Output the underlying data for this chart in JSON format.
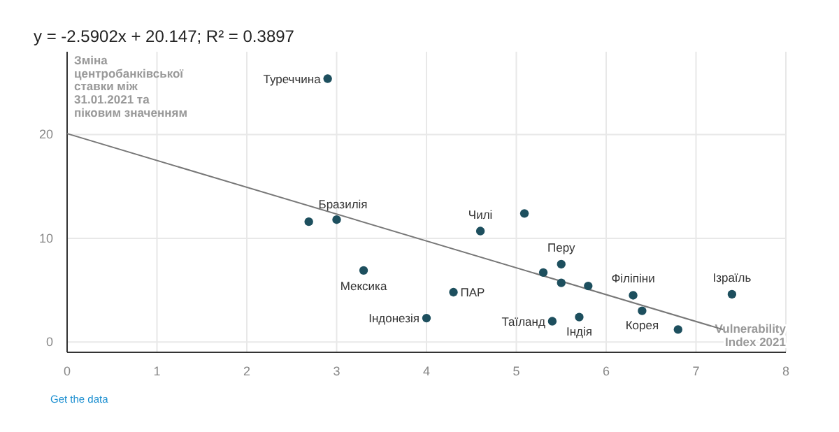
{
  "chart_data": {
    "type": "scatter",
    "title": "y = -2.5902x + 20.147; R² = 0.3897",
    "ylabel": "Зміна центробанківської ставки між 31.01.2021 та піковим значенням",
    "xlabel": "Vulnerability Index 2021",
    "xlim": [
      0,
      8
    ],
    "xticks": [
      0,
      1,
      2,
      3,
      4,
      5,
      6,
      7,
      8
    ],
    "ylim": [
      -1,
      28
    ],
    "yticks": [
      0,
      10,
      20
    ],
    "grid": true,
    "series": [
      {
        "color": "#1d4f5e",
        "marker": "circle",
        "x": [
          2.9,
          2.69,
          3.0,
          3.3,
          4.0,
          4.3,
          4.6,
          5.09,
          5.3,
          5.5,
          5.5,
          5.8,
          5.4,
          5.7,
          6.3,
          6.4,
          6.8,
          7.4
        ],
        "values": [
          25.4,
          11.6,
          11.8,
          6.9,
          2.3,
          4.8,
          10.7,
          12.4,
          6.7,
          7.5,
          5.7,
          5.4,
          2.0,
          2.4,
          4.5,
          3.0,
          1.2,
          4.6
        ]
      },
      {
        "type": "line",
        "marker": "none",
        "color": "#777777",
        "x": [
          0,
          7.3
        ],
        "values": [
          20.1,
          1.2
        ]
      }
    ],
    "annotations": [
      {
        "text": "Туреччина",
        "x": 2.9,
        "y": 25.4
      },
      {
        "text": "Бразилія",
        "x": 3.0,
        "y": 11.8
      },
      {
        "text": "Мексика",
        "x": 3.3,
        "y": 6.9
      },
      {
        "text": "Індонезія",
        "x": 4.0,
        "y": 2.3
      },
      {
        "text": "ПАР",
        "x": 4.3,
        "y": 4.8
      },
      {
        "text": "Чилі",
        "x": 4.6,
        "y": 10.7
      },
      {
        "text": "Перу",
        "x": 5.5,
        "y": 7.5
      },
      {
        "text": "Таїланд",
        "x": 5.4,
        "y": 2.0
      },
      {
        "text": "Індія",
        "x": 5.7,
        "y": 2.4
      },
      {
        "text": "Філіпіни",
        "x": 6.3,
        "y": 4.5
      },
      {
        "text": "Корея",
        "x": 6.4,
        "y": 3.0
      },
      {
        "text": "Ізраїль",
        "x": 7.4,
        "y": 4.6
      },
      "Get the data"
    ]
  }
}
